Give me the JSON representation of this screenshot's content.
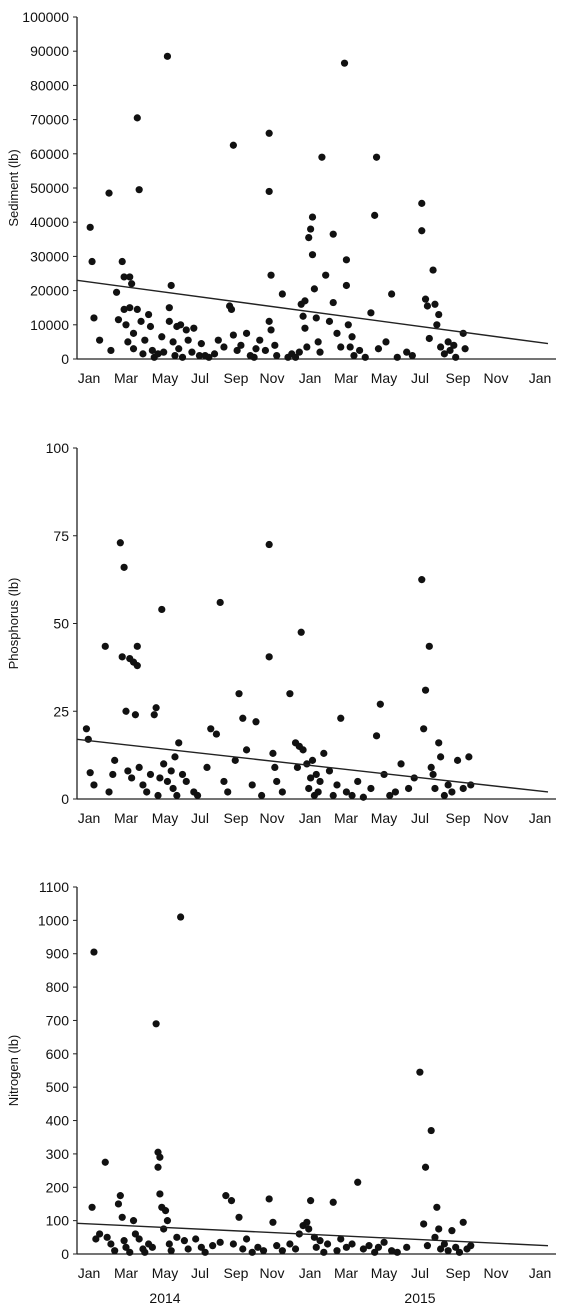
{
  "chart_data": [
    {
      "type": "scatter",
      "ylabel": "Sediment (lb)",
      "ylim": [
        0,
        100000
      ],
      "yticks": [
        0,
        10000,
        20000,
        30000,
        40000,
        50000,
        60000,
        70000,
        80000,
        90000,
        100000
      ],
      "xlim": [
        0,
        25
      ],
      "xticks": [
        "Jan",
        "Mar",
        "May",
        "Jul",
        "Sep",
        "Nov",
        "Jan",
        "Mar",
        "May",
        "Jul",
        "Sep",
        "Nov",
        "Jan"
      ],
      "trend": [
        [
          0,
          23000
        ],
        [
          25,
          4500
        ]
      ],
      "points": [
        [
          0.7,
          38500
        ],
        [
          0.8,
          28500
        ],
        [
          0.9,
          12000
        ],
        [
          1.2,
          5500
        ],
        [
          1.7,
          48500
        ],
        [
          1.8,
          2500
        ],
        [
          2.1,
          19500
        ],
        [
          2.2,
          11500
        ],
        [
          2.4,
          28500
        ],
        [
          2.5,
          14500
        ],
        [
          2.5,
          24000
        ],
        [
          2.6,
          10000
        ],
        [
          2.7,
          5000
        ],
        [
          2.8,
          24000
        ],
        [
          2.8,
          15000
        ],
        [
          2.9,
          22000
        ],
        [
          3,
          7500
        ],
        [
          3,
          3000
        ],
        [
          3.2,
          70500
        ],
        [
          3.3,
          49500
        ],
        [
          3.2,
          14500
        ],
        [
          3.4,
          11000
        ],
        [
          3.5,
          1500
        ],
        [
          3.6,
          5500
        ],
        [
          3.8,
          13000
        ],
        [
          3.9,
          9500
        ],
        [
          4,
          2500
        ],
        [
          4.1,
          500
        ],
        [
          4.3,
          1500
        ],
        [
          4.5,
          6500
        ],
        [
          4.6,
          2000
        ],
        [
          4.8,
          88500
        ],
        [
          4.9,
          15000
        ],
        [
          4.9,
          11000
        ],
        [
          5,
          21500
        ],
        [
          5.1,
          5000
        ],
        [
          5.2,
          1000
        ],
        [
          5.3,
          9500
        ],
        [
          5.4,
          3000
        ],
        [
          5.5,
          10000
        ],
        [
          5.6,
          500
        ],
        [
          5.8,
          8500
        ],
        [
          5.9,
          5500
        ],
        [
          6.1,
          2000
        ],
        [
          6.2,
          9000
        ],
        [
          6.5,
          1000
        ],
        [
          6.6,
          4500
        ],
        [
          6.8,
          1000
        ],
        [
          7,
          500
        ],
        [
          7.3,
          1500
        ],
        [
          7.5,
          5500
        ],
        [
          7.8,
          3500
        ],
        [
          8.1,
          15500
        ],
        [
          8.2,
          14500
        ],
        [
          8.3,
          62500
        ],
        [
          8.3,
          7000
        ],
        [
          8.5,
          2500
        ],
        [
          8.7,
          4000
        ],
        [
          9,
          7500
        ],
        [
          9.2,
          1000
        ],
        [
          9.4,
          500
        ],
        [
          9.5,
          3000
        ],
        [
          9.7,
          5500
        ],
        [
          10,
          2500
        ],
        [
          10.2,
          66000
        ],
        [
          10.2,
          49000
        ],
        [
          10.3,
          24500
        ],
        [
          10.2,
          11000
        ],
        [
          10.3,
          8500
        ],
        [
          10.5,
          4000
        ],
        [
          10.6,
          1000
        ],
        [
          10.9,
          19000
        ],
        [
          11.2,
          500
        ],
        [
          11.4,
          1500
        ],
        [
          11.6,
          500
        ],
        [
          11.8,
          2000
        ],
        [
          11.9,
          16000
        ],
        [
          12,
          12500
        ],
        [
          12.1,
          17000
        ],
        [
          12.1,
          9000
        ],
        [
          12.2,
          3500
        ],
        [
          12.3,
          35500
        ],
        [
          12.4,
          38000
        ],
        [
          12.5,
          41500
        ],
        [
          12.5,
          30500
        ],
        [
          12.6,
          20500
        ],
        [
          12.7,
          12000
        ],
        [
          12.8,
          5000
        ],
        [
          12.9,
          2000
        ],
        [
          13,
          59000
        ],
        [
          13.2,
          24500
        ],
        [
          13.4,
          11000
        ],
        [
          13.6,
          36500
        ],
        [
          13.6,
          16500
        ],
        [
          13.8,
          7500
        ],
        [
          14,
          3500
        ],
        [
          14.2,
          86500
        ],
        [
          14.3,
          29000
        ],
        [
          14.3,
          21500
        ],
        [
          14.4,
          10000
        ],
        [
          14.5,
          3500
        ],
        [
          14.6,
          6500
        ],
        [
          14.7,
          1000
        ],
        [
          15,
          2500
        ],
        [
          15.3,
          500
        ],
        [
          15.6,
          13500
        ],
        [
          15.8,
          42000
        ],
        [
          15.9,
          59000
        ],
        [
          16,
          3000
        ],
        [
          16.4,
          5000
        ],
        [
          16.7,
          19000
        ],
        [
          17,
          500
        ],
        [
          17.5,
          2000
        ],
        [
          17.8,
          1000
        ],
        [
          18.3,
          45500
        ],
        [
          18.3,
          37500
        ],
        [
          18.5,
          17500
        ],
        [
          18.6,
          15500
        ],
        [
          18.7,
          6000
        ],
        [
          18.9,
          26000
        ],
        [
          19,
          16000
        ],
        [
          19.1,
          10000
        ],
        [
          19.2,
          13000
        ],
        [
          19.3,
          3500
        ],
        [
          19.5,
          1500
        ],
        [
          19.7,
          5000
        ],
        [
          19.8,
          2500
        ],
        [
          20,
          4000
        ],
        [
          20.1,
          500
        ],
        [
          20.5,
          7500
        ],
        [
          20.6,
          3000
        ]
      ]
    },
    {
      "type": "scatter",
      "ylabel": "Phosphorus (lb)",
      "ylim": [
        0,
        100
      ],
      "yticks": [
        0,
        25,
        50,
        75,
        100
      ],
      "xlim": [
        0,
        25
      ],
      "xticks": [
        "Jan",
        "Mar",
        "May",
        "Jul",
        "Sep",
        "Nov",
        "Jan",
        "Mar",
        "May",
        "Jul",
        "Sep",
        "Nov",
        "Jan"
      ],
      "trend": [
        [
          0,
          17
        ],
        [
          25,
          2
        ]
      ],
      "points": [
        [
          0.5,
          20
        ],
        [
          0.6,
          17
        ],
        [
          0.7,
          7.5
        ],
        [
          0.9,
          4
        ],
        [
          1.5,
          43.5
        ],
        [
          1.7,
          2
        ],
        [
          1.9,
          7
        ],
        [
          2,
          11
        ],
        [
          2.3,
          73
        ],
        [
          2.4,
          40.5
        ],
        [
          2.5,
          66
        ],
        [
          2.6,
          25
        ],
        [
          2.7,
          8
        ],
        [
          2.8,
          40
        ],
        [
          2.9,
          6
        ],
        [
          3,
          39
        ],
        [
          3.2,
          38
        ],
        [
          3.2,
          43.5
        ],
        [
          3.1,
          24
        ],
        [
          3.3,
          9
        ],
        [
          3.5,
          4
        ],
        [
          3.7,
          2
        ],
        [
          3.9,
          7
        ],
        [
          4.1,
          24
        ],
        [
          4.2,
          26
        ],
        [
          4.3,
          1
        ],
        [
          4.5,
          54
        ],
        [
          4.4,
          6
        ],
        [
          4.6,
          10
        ],
        [
          4.8,
          5
        ],
        [
          5,
          8
        ],
        [
          5.1,
          3
        ],
        [
          5.2,
          12
        ],
        [
          5.3,
          1
        ],
        [
          5.4,
          16
        ],
        [
          5.6,
          7
        ],
        [
          5.8,
          5
        ],
        [
          6.2,
          2
        ],
        [
          6.4,
          1
        ],
        [
          6.9,
          9
        ],
        [
          7.1,
          20
        ],
        [
          7.4,
          18.5
        ],
        [
          7.6,
          56
        ],
        [
          7.8,
          5
        ],
        [
          8,
          2
        ],
        [
          8.4,
          11
        ],
        [
          8.6,
          30
        ],
        [
          8.8,
          23
        ],
        [
          9,
          14
        ],
        [
          9.3,
          4
        ],
        [
          9.5,
          22
        ],
        [
          9.8,
          1
        ],
        [
          10.2,
          72.5
        ],
        [
          10.2,
          40.5
        ],
        [
          10.4,
          13
        ],
        [
          10.5,
          9
        ],
        [
          10.6,
          5
        ],
        [
          10.9,
          2
        ],
        [
          11.3,
          30
        ],
        [
          11.6,
          16
        ],
        [
          11.7,
          9
        ],
        [
          11.8,
          15
        ],
        [
          11.9,
          47.5
        ],
        [
          12,
          14
        ],
        [
          12.2,
          10
        ],
        [
          12.3,
          3
        ],
        [
          12.4,
          6
        ],
        [
          12.5,
          11
        ],
        [
          12.6,
          1
        ],
        [
          12.7,
          7
        ],
        [
          12.8,
          2
        ],
        [
          12.9,
          5
        ],
        [
          13.1,
          13
        ],
        [
          13.4,
          8
        ],
        [
          13.6,
          1
        ],
        [
          13.8,
          4
        ],
        [
          14,
          23
        ],
        [
          14.3,
          2
        ],
        [
          14.6,
          1
        ],
        [
          14.9,
          5
        ],
        [
          15.2,
          0.5
        ],
        [
          15.6,
          3
        ],
        [
          15.9,
          18
        ],
        [
          16.1,
          27
        ],
        [
          16.3,
          7
        ],
        [
          16.6,
          1
        ],
        [
          16.9,
          2
        ],
        [
          17.2,
          10
        ],
        [
          17.6,
          3
        ],
        [
          17.9,
          6
        ],
        [
          18.3,
          62.5
        ],
        [
          18.4,
          20
        ],
        [
          18.5,
          31
        ],
        [
          18.7,
          43.5
        ],
        [
          18.8,
          9
        ],
        [
          18.9,
          7
        ],
        [
          19,
          3
        ],
        [
          19.2,
          16
        ],
        [
          19.3,
          12
        ],
        [
          19.5,
          1
        ],
        [
          19.7,
          4
        ],
        [
          19.9,
          2
        ],
        [
          20.2,
          11
        ],
        [
          20.5,
          3
        ],
        [
          20.8,
          12
        ],
        [
          20.9,
          4
        ]
      ]
    },
    {
      "type": "scatter",
      "ylabel": "Nitrogen (lb)",
      "ylim": [
        0,
        1100
      ],
      "yticks": [
        0,
        100,
        200,
        300,
        400,
        500,
        600,
        700,
        800,
        900,
        1000,
        1100
      ],
      "xlim": [
        0,
        25
      ],
      "xticks": [
        "Jan",
        "Mar",
        "May",
        "Jul",
        "Sep",
        "Nov",
        "Jan",
        "Mar",
        "May",
        "Jul",
        "Sep",
        "Nov",
        "Jan"
      ],
      "xgroups": [
        "2014",
        "2015"
      ],
      "trend": [
        [
          0,
          92
        ],
        [
          25,
          25
        ]
      ],
      "points": [
        [
          0.9,
          905
        ],
        [
          0.8,
          140
        ],
        [
          1,
          45
        ],
        [
          1.2,
          60
        ],
        [
          1.5,
          275
        ],
        [
          1.6,
          50
        ],
        [
          1.8,
          30
        ],
        [
          2,
          10
        ],
        [
          2.2,
          150
        ],
        [
          2.3,
          175
        ],
        [
          2.4,
          110
        ],
        [
          2.5,
          40
        ],
        [
          2.6,
          20
        ],
        [
          2.8,
          5
        ],
        [
          3,
          100
        ],
        [
          3.1,
          60
        ],
        [
          3.3,
          45
        ],
        [
          3.5,
          15
        ],
        [
          3.6,
          5
        ],
        [
          3.8,
          30
        ],
        [
          4,
          20
        ],
        [
          4.2,
          690
        ],
        [
          4.3,
          305
        ],
        [
          4.4,
          290
        ],
        [
          4.3,
          260
        ],
        [
          4.4,
          180
        ],
        [
          4.5,
          140
        ],
        [
          4.6,
          75
        ],
        [
          4.7,
          130
        ],
        [
          4.8,
          100
        ],
        [
          4.9,
          30
        ],
        [
          5,
          10
        ],
        [
          5.3,
          50
        ],
        [
          5.5,
          1010
        ],
        [
          5.7,
          40
        ],
        [
          5.9,
          15
        ],
        [
          6.3,
          45
        ],
        [
          6.6,
          20
        ],
        [
          6.8,
          5
        ],
        [
          7.2,
          25
        ],
        [
          7.6,
          35
        ],
        [
          7.9,
          175
        ],
        [
          8.2,
          160
        ],
        [
          8.3,
          30
        ],
        [
          8.6,
          110
        ],
        [
          8.8,
          15
        ],
        [
          9,
          45
        ],
        [
          9.3,
          5
        ],
        [
          9.6,
          20
        ],
        [
          9.9,
          10
        ],
        [
          10.2,
          165
        ],
        [
          10.4,
          95
        ],
        [
          10.6,
          25
        ],
        [
          10.9,
          10
        ],
        [
          11.3,
          30
        ],
        [
          11.6,
          15
        ],
        [
          11.8,
          60
        ],
        [
          12,
          85
        ],
        [
          12.2,
          95
        ],
        [
          12.3,
          75
        ],
        [
          12.4,
          160
        ],
        [
          12.6,
          50
        ],
        [
          12.7,
          20
        ],
        [
          12.9,
          40
        ],
        [
          13.1,
          5
        ],
        [
          13.3,
          30
        ],
        [
          13.6,
          155
        ],
        [
          13.8,
          10
        ],
        [
          14,
          45
        ],
        [
          14.3,
          20
        ],
        [
          14.6,
          30
        ],
        [
          14.9,
          215
        ],
        [
          15.2,
          15
        ],
        [
          15.5,
          25
        ],
        [
          15.8,
          5
        ],
        [
          16,
          20
        ],
        [
          16.3,
          35
        ],
        [
          16.7,
          10
        ],
        [
          17,
          5
        ],
        [
          17.5,
          20
        ],
        [
          18.2,
          545
        ],
        [
          18.4,
          90
        ],
        [
          18.5,
          260
        ],
        [
          18.6,
          25
        ],
        [
          18.8,
          370
        ],
        [
          19,
          50
        ],
        [
          19.1,
          140
        ],
        [
          19.2,
          75
        ],
        [
          19.3,
          15
        ],
        [
          19.5,
          30
        ],
        [
          19.7,
          10
        ],
        [
          19.9,
          70
        ],
        [
          20.1,
          20
        ],
        [
          20.3,
          5
        ],
        [
          20.5,
          95
        ],
        [
          20.7,
          15
        ],
        [
          20.9,
          25
        ]
      ]
    }
  ]
}
